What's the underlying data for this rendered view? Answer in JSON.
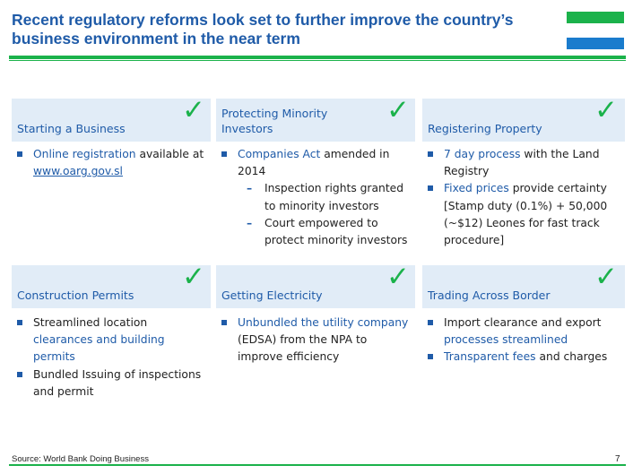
{
  "title_line1": "Recent regulatory reforms look set to further improve the country’s",
  "title_line2": "business environment in the near term",
  "flag": {
    "green": "#1bb24b",
    "white": "#ffffff",
    "blue": "#1a7ccd"
  },
  "check_glyph": "✓",
  "cards": [
    {
      "title": "Starting a Business",
      "bullets": [
        {
          "hl": "Online registration",
          "text": " available at ",
          "link": "www.oarg.gov.sl"
        }
      ]
    },
    {
      "title_line1": "Protecting Minority",
      "title_line2": "Investors",
      "bullets": [
        {
          "hl": "Companies Act",
          "text": " amended in 2014"
        }
      ],
      "dashes": [
        "Inspection rights granted to minority investors",
        "Court empowered to protect minority investors"
      ]
    },
    {
      "title": "Registering Property",
      "bullets": [
        {
          "hl": "7 day process",
          "text": " with the Land Registry"
        },
        {
          "hl": "Fixed prices",
          "text": " provide certainty [Stamp duty (0.1%) + 50,000 (~$12) Leones for fast track procedure]"
        }
      ]
    },
    {
      "title": "Construction Permits",
      "bullets": [
        {
          "pre": "Streamlined location ",
          "hl": "clearances and building permits"
        },
        {
          "text": "Bundled Issuing of inspections and permit"
        }
      ]
    },
    {
      "title": "Getting Electricity",
      "bullets": [
        {
          "hl": "Unbundled the utility company",
          "text": " (EDSA) from the NPA to improve efficiency"
        }
      ]
    },
    {
      "title": "Trading Across Border",
      "bullets": [
        {
          "pre": "Import clearance and export ",
          "hl": "processes streamlined"
        },
        {
          "hl": "Transparent fees",
          "text": " and charges"
        }
      ]
    }
  ],
  "source": "Source: World Bank Doing Business",
  "page_number": "7"
}
